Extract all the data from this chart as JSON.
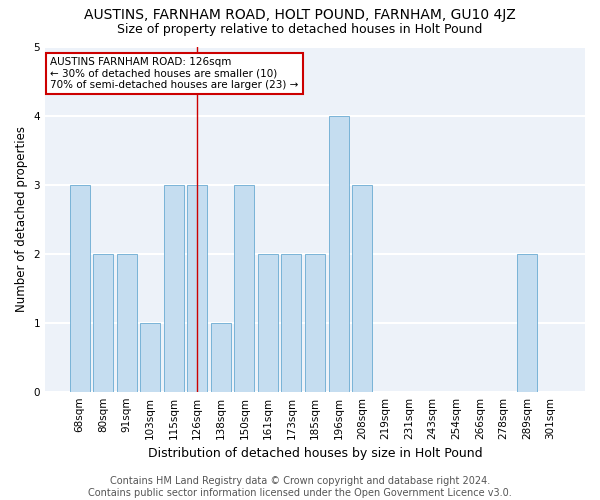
{
  "title": "AUSTINS, FARNHAM ROAD, HOLT POUND, FARNHAM, GU10 4JZ",
  "subtitle": "Size of property relative to detached houses in Holt Pound",
  "xlabel": "Distribution of detached houses by size in Holt Pound",
  "ylabel": "Number of detached properties",
  "categories": [
    "68sqm",
    "80sqm",
    "91sqm",
    "103sqm",
    "115sqm",
    "126sqm",
    "138sqm",
    "150sqm",
    "161sqm",
    "173sqm",
    "185sqm",
    "196sqm",
    "208sqm",
    "219sqm",
    "231sqm",
    "243sqm",
    "254sqm",
    "266sqm",
    "278sqm",
    "289sqm",
    "301sqm"
  ],
  "values": [
    3,
    2,
    2,
    1,
    3,
    3,
    1,
    3,
    2,
    2,
    2,
    4,
    3,
    0,
    0,
    0,
    0,
    0,
    0,
    2,
    0
  ],
  "highlight_index": 5,
  "bar_color": "#c5ddf0",
  "bar_edge_color": "#6aabd2",
  "vline_color": "#cc0000",
  "ylim": [
    0,
    5
  ],
  "yticks": [
    0,
    1,
    2,
    3,
    4,
    5
  ],
  "annotation_text": "AUSTINS FARNHAM ROAD: 126sqm\n← 30% of detached houses are smaller (10)\n70% of semi-detached houses are larger (23) →",
  "annotation_box_color": "white",
  "annotation_border_color": "#cc0000",
  "footnote": "Contains HM Land Registry data © Crown copyright and database right 2024.\nContains public sector information licensed under the Open Government Licence v3.0.",
  "bg_color": "#edf2f9",
  "grid_color": "white",
  "title_fontsize": 10,
  "subtitle_fontsize": 9,
  "xlabel_fontsize": 9,
  "ylabel_fontsize": 8.5,
  "tick_fontsize": 7.5,
  "footnote_fontsize": 7
}
